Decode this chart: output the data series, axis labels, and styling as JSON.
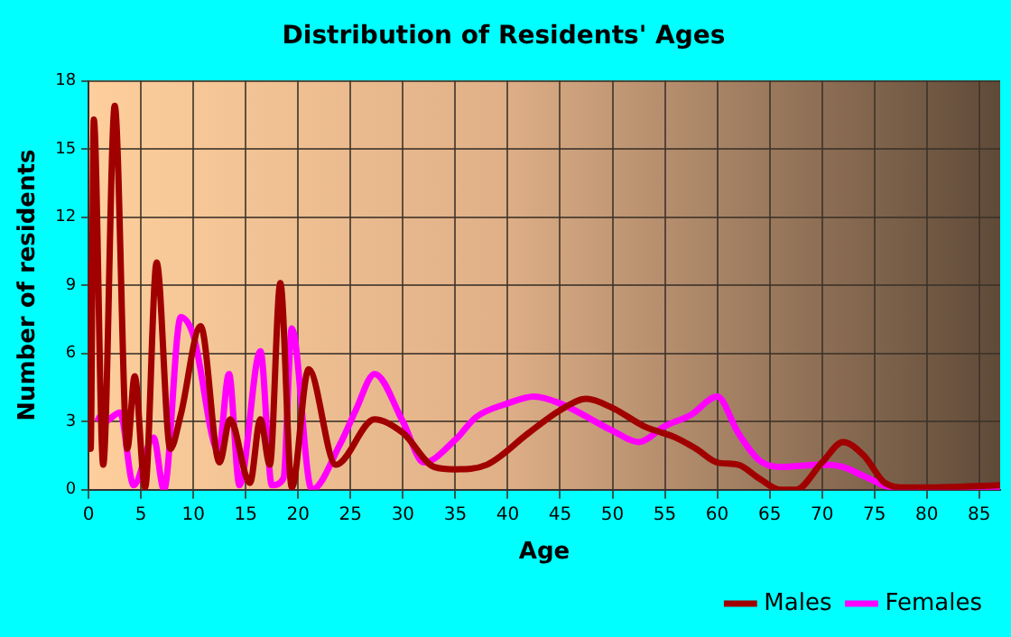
{
  "chart_data": {
    "type": "line",
    "title": "Distribution of Residents' Ages",
    "xlabel": "Age",
    "ylabel": "Number of residents",
    "xlim": [
      0,
      87
    ],
    "xticks": [
      0,
      5,
      10,
      15,
      20,
      25,
      30,
      35,
      40,
      45,
      50,
      55,
      60,
      65,
      70,
      75,
      80,
      85
    ],
    "ylim": [
      0,
      18
    ],
    "yticks": [
      0,
      3,
      6,
      9,
      12,
      15,
      18
    ],
    "grid": true,
    "legend": "bottom right",
    "marker": "none",
    "series": [
      {
        "name": "Males",
        "color": "#a00000",
        "x": [
          0,
          0.2,
          0.5,
          1.4,
          2.5,
          3.7,
          4.4,
          5.4,
          6.5,
          7.8,
          8.8,
          10.7,
          12.5,
          13.5,
          15.4,
          16.4,
          17.3,
          18.3,
          19.4,
          21,
          23.6,
          27.3,
          30,
          33,
          35,
          38,
          42,
          45,
          47.5,
          50,
          53,
          56,
          58,
          60,
          62,
          64,
          66,
          67.5,
          70,
          72,
          74,
          76,
          78,
          80,
          87
        ],
        "values": [
          10,
          1.8,
          16.3,
          1.1,
          16.9,
          1.8,
          5,
          0.1,
          10,
          1.8,
          3.3,
          7.2,
          1.2,
          3.1,
          0.3,
          3.1,
          1.1,
          9.1,
          0.1,
          5.3,
          1.1,
          3.1,
          2.5,
          1,
          0.9,
          1.1,
          2.5,
          3.5,
          4,
          3.6,
          2.8,
          2.3,
          1.8,
          1.2,
          1.1,
          0.5,
          0,
          0,
          1.2,
          2.1,
          1.5,
          0.3,
          0.1,
          0.1,
          0.2
        ]
      },
      {
        "name": "Females",
        "color": "#ff00ff",
        "x": [
          0.7,
          1.5,
          3,
          4.3,
          6.2,
          7.2,
          8.8,
          10,
          12.4,
          13.4,
          14.4,
          16.4,
          17.5,
          18.6,
          19.4,
          21.3,
          24,
          25.5,
          27.3,
          30,
          32,
          35,
          37,
          40,
          42.5,
          45,
          50,
          52.5,
          55,
          57.5,
          60,
          62,
          64,
          66,
          70,
          72,
          74,
          77,
          80,
          87
        ],
        "values": [
          3.2,
          3,
          3.4,
          0.2,
          2.3,
          0,
          7.6,
          6.8,
          1.7,
          5.1,
          0.2,
          6.1,
          0.2,
          0.5,
          7.1,
          0,
          2,
          3.5,
          5.1,
          3,
          1.2,
          2.2,
          3.2,
          3.8,
          4.1,
          3.8,
          2.6,
          2.1,
          2.8,
          3.3,
          4.1,
          2.5,
          1.3,
          1,
          1.1,
          1,
          0.6,
          0.05,
          0,
          0.1
        ]
      }
    ]
  }
}
